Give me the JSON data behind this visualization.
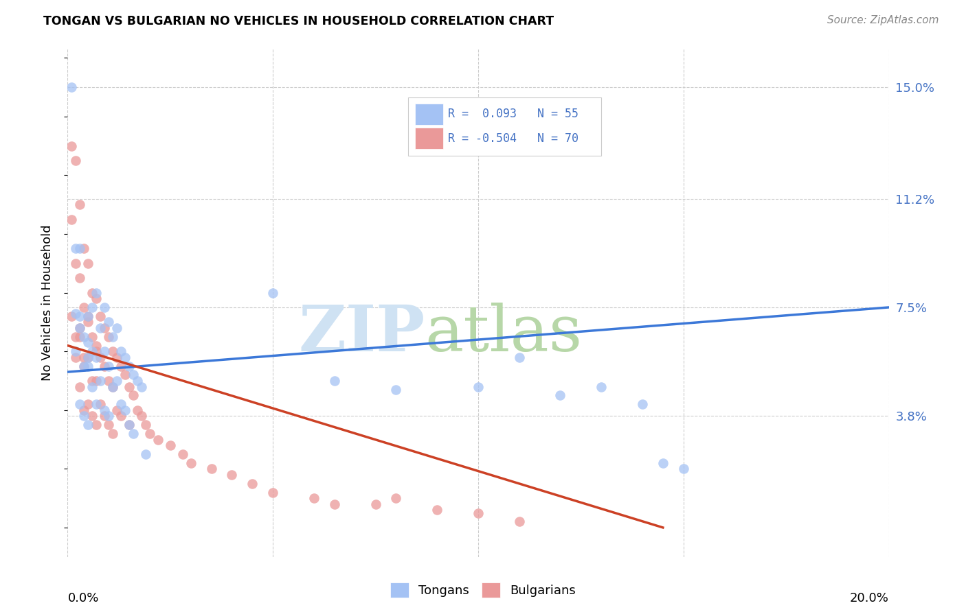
{
  "title": "TONGAN VS BULGARIAN NO VEHICLES IN HOUSEHOLD CORRELATION CHART",
  "source": "Source: ZipAtlas.com",
  "ylabel": "No Vehicles in Household",
  "ytick_labels": [
    "15.0%",
    "11.2%",
    "7.5%",
    "3.8%"
  ],
  "ytick_values": [
    0.15,
    0.112,
    0.075,
    0.038
  ],
  "xlim": [
    0.0,
    0.2
  ],
  "ylim": [
    -0.01,
    0.163
  ],
  "tongan_color": "#a4c2f4",
  "bulgarian_color": "#ea9999",
  "tongan_line_color": "#3c78d8",
  "bulgarian_line_color": "#cc4125",
  "watermark_zip_color": "#cfe2f3",
  "watermark_atlas_color": "#b7d7a8",
  "bg_color": "#ffffff",
  "grid_color": "#cccccc",
  "legend_text_color": "#4472c4",
  "tongan_scatter": {
    "x": [
      0.001,
      0.002,
      0.002,
      0.003,
      0.003,
      0.003,
      0.004,
      0.004,
      0.004,
      0.005,
      0.005,
      0.005,
      0.005,
      0.006,
      0.006,
      0.006,
      0.007,
      0.007,
      0.007,
      0.008,
      0.008,
      0.009,
      0.009,
      0.009,
      0.01,
      0.01,
      0.01,
      0.011,
      0.011,
      0.012,
      0.012,
      0.013,
      0.013,
      0.014,
      0.014,
      0.015,
      0.015,
      0.016,
      0.016,
      0.017,
      0.018,
      0.019,
      0.05,
      0.065,
      0.08,
      0.1,
      0.11,
      0.12,
      0.13,
      0.14,
      0.145,
      0.15,
      0.002,
      0.003,
      0.005
    ],
    "y": [
      0.15,
      0.073,
      0.06,
      0.072,
      0.068,
      0.042,
      0.065,
      0.055,
      0.038,
      0.072,
      0.063,
      0.055,
      0.035,
      0.075,
      0.06,
      0.048,
      0.08,
      0.058,
      0.042,
      0.068,
      0.05,
      0.075,
      0.06,
      0.04,
      0.07,
      0.055,
      0.038,
      0.065,
      0.048,
      0.068,
      0.05,
      0.06,
      0.042,
      0.058,
      0.04,
      0.055,
      0.035,
      0.052,
      0.032,
      0.05,
      0.048,
      0.025,
      0.08,
      0.05,
      0.047,
      0.048,
      0.058,
      0.045,
      0.048,
      0.042,
      0.022,
      0.02,
      0.095,
      0.095,
      0.058
    ]
  },
  "bulgarian_scatter": {
    "x": [
      0.001,
      0.001,
      0.002,
      0.002,
      0.002,
      0.003,
      0.003,
      0.003,
      0.003,
      0.004,
      0.004,
      0.004,
      0.004,
      0.005,
      0.005,
      0.005,
      0.005,
      0.006,
      0.006,
      0.006,
      0.006,
      0.007,
      0.007,
      0.007,
      0.007,
      0.008,
      0.008,
      0.008,
      0.009,
      0.009,
      0.009,
      0.01,
      0.01,
      0.01,
      0.011,
      0.011,
      0.011,
      0.012,
      0.012,
      0.013,
      0.013,
      0.014,
      0.015,
      0.015,
      0.016,
      0.017,
      0.018,
      0.019,
      0.02,
      0.022,
      0.025,
      0.028,
      0.03,
      0.035,
      0.04,
      0.045,
      0.05,
      0.06,
      0.065,
      0.075,
      0.08,
      0.09,
      0.1,
      0.11,
      0.003,
      0.004,
      0.005,
      0.007,
      0.001,
      0.002
    ],
    "y": [
      0.13,
      0.105,
      0.125,
      0.09,
      0.065,
      0.11,
      0.085,
      0.065,
      0.048,
      0.095,
      0.075,
      0.055,
      0.04,
      0.09,
      0.072,
      0.058,
      0.042,
      0.08,
      0.065,
      0.05,
      0.038,
      0.078,
      0.062,
      0.05,
      0.035,
      0.072,
      0.058,
      0.042,
      0.068,
      0.055,
      0.038,
      0.065,
      0.05,
      0.035,
      0.06,
      0.048,
      0.032,
      0.058,
      0.04,
      0.055,
      0.038,
      0.052,
      0.048,
      0.035,
      0.045,
      0.04,
      0.038,
      0.035,
      0.032,
      0.03,
      0.028,
      0.025,
      0.022,
      0.02,
      0.018,
      0.015,
      0.012,
      0.01,
      0.008,
      0.008,
      0.01,
      0.006,
      0.005,
      0.002,
      0.068,
      0.058,
      0.07,
      0.06,
      0.072,
      0.058
    ]
  },
  "tongan_line": {
    "x0": 0.0,
    "y0": 0.053,
    "x1": 0.2,
    "y1": 0.075
  },
  "bulgarian_line": {
    "x0": 0.0,
    "y0": 0.062,
    "x1": 0.145,
    "y1": 0.0
  }
}
